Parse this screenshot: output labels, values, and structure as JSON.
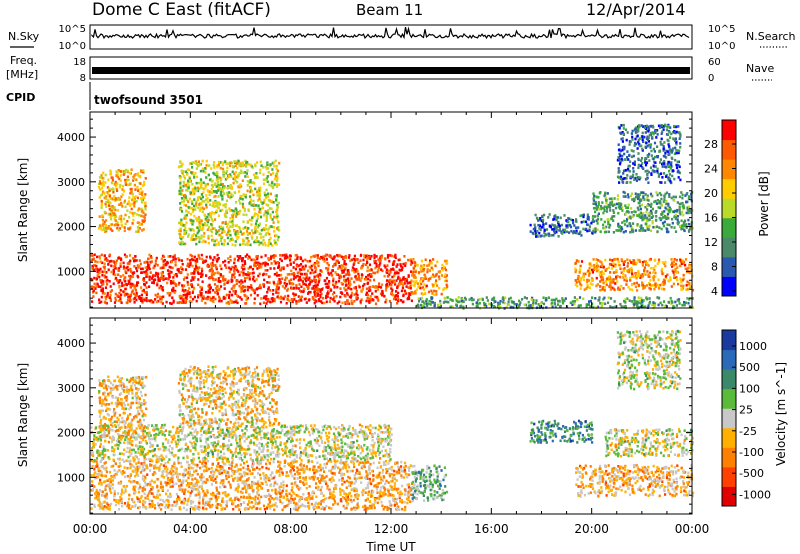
{
  "header": {
    "station": "Dome C East (fitACF)",
    "beam": "Beam 11",
    "date": "12/Apr/2014"
  },
  "colors": {
    "power_scale": [
      "#0000ff",
      "#2a5ab0",
      "#4a8a6a",
      "#3aaa3a",
      "#bada2a",
      "#ffcc00",
      "#ff8800",
      "#ff5a00",
      "#ff0000"
    ],
    "velocity_scale": [
      "#1a3aa0",
      "#2a6ab8",
      "#3a8a6a",
      "#5aba3a",
      "#c8c8c8",
      "#ffb000",
      "#ff8000",
      "#ff4000",
      "#e00000"
    ],
    "ground_scatter": "#c8c8c8",
    "trace": "#000000"
  },
  "panels": {
    "nsky_label": "N.Sky",
    "nsky_ticks": [
      "10^5",
      "10^0"
    ],
    "nsearch_label": "N.Search",
    "nsearch_ticks": [
      "10^5",
      "10^0"
    ],
    "freq_label_1": "Freq.",
    "freq_label_2": "[MHz]",
    "freq_ticks": [
      "18",
      "8"
    ],
    "nave_label": "Nave",
    "nave_ticks": [
      "60",
      "0"
    ],
    "cpid_label": "CPID",
    "cpid_value": "twofsound 3501"
  },
  "chart_data": [
    {
      "type": "heatmap",
      "title": "Power [dB]",
      "ylabel": "Slant Range [km]",
      "xlabel": "Time UT",
      "x_ticks": [
        "00:00",
        "04:00",
        "08:00",
        "12:00",
        "16:00",
        "20:00",
        "00:00"
      ],
      "xlim_hours": [
        0,
        24
      ],
      "ylim": [
        180,
        4560
      ],
      "y_ticks": [
        1000,
        2000,
        3000,
        4000
      ],
      "colorbar_label": "Power [dB]",
      "colorbar_ticks": [
        "28",
        "24",
        "20",
        "16",
        "12",
        "8",
        "4"
      ],
      "colorbar_range": [
        0,
        30
      ],
      "regions": [
        {
          "t0": 0.0,
          "t1": 12.8,
          "r0": 300,
          "r1": 1400,
          "value": 27
        },
        {
          "t0": 12.8,
          "t1": 14.2,
          "r0": 500,
          "r1": 1300,
          "value": 22
        },
        {
          "t0": 0.3,
          "t1": 2.2,
          "r0": 1900,
          "r1": 3300,
          "value": 20
        },
        {
          "t0": 3.5,
          "t1": 7.5,
          "r0": 1600,
          "r1": 3500,
          "value": 16
        },
        {
          "t0": 17.5,
          "t1": 20.0,
          "r0": 1800,
          "r1": 2300,
          "value": 6
        },
        {
          "t0": 19.3,
          "t1": 24.0,
          "r0": 600,
          "r1": 1300,
          "value": 22
        },
        {
          "t0": 20.0,
          "t1": 24.0,
          "r0": 1900,
          "r1": 2800,
          "value": 10
        },
        {
          "t0": 21.0,
          "t1": 23.5,
          "r0": 3000,
          "r1": 4300,
          "value": 6
        },
        {
          "t0": 13.0,
          "t1": 24.0,
          "r0": 200,
          "r1": 450,
          "value": 10
        }
      ]
    },
    {
      "type": "heatmap",
      "title": "Velocity [m s^-1]",
      "ylabel": "Slant Range [km]",
      "xlabel": "Time UT",
      "x_ticks": [
        "00:00",
        "04:00",
        "08:00",
        "12:00",
        "16:00",
        "20:00",
        "00:00"
      ],
      "xlim_hours": [
        0,
        24
      ],
      "ylim": [
        180,
        4560
      ],
      "y_ticks": [
        1000,
        2000,
        3000,
        4000
      ],
      "colorbar_label": "Velocity [m s^-1]",
      "colorbar_ticks": [
        "1000",
        "500",
        "100",
        "25",
        "-25",
        "-100",
        "-500",
        "-1000"
      ],
      "colorbar_range": [
        -1200,
        1200
      ],
      "regions": [
        {
          "t0": 0.0,
          "t1": 12.8,
          "r0": 300,
          "r1": 1400,
          "value": -300
        },
        {
          "t0": 0.0,
          "t1": 12.0,
          "r0": 1400,
          "r1": 2200,
          "value": 0
        },
        {
          "t0": 12.8,
          "t1": 14.2,
          "r0": 500,
          "r1": 1300,
          "value": 300
        },
        {
          "t0": 0.3,
          "t1": 2.2,
          "r0": 1900,
          "r1": 3300,
          "value": -250
        },
        {
          "t0": 3.5,
          "t1": 7.5,
          "r0": 2200,
          "r1": 3500,
          "value": -200
        },
        {
          "t0": 17.5,
          "t1": 20.0,
          "r0": 1800,
          "r1": 2300,
          "value": 600
        },
        {
          "t0": 19.3,
          "t1": 24.0,
          "r0": 600,
          "r1": 1300,
          "value": -300
        },
        {
          "t0": 20.5,
          "t1": 24.0,
          "r0": 1500,
          "r1": 2100,
          "value": 0
        },
        {
          "t0": 21.0,
          "t1": 23.5,
          "r0": 3000,
          "r1": 4300,
          "value": 50
        }
      ]
    }
  ]
}
